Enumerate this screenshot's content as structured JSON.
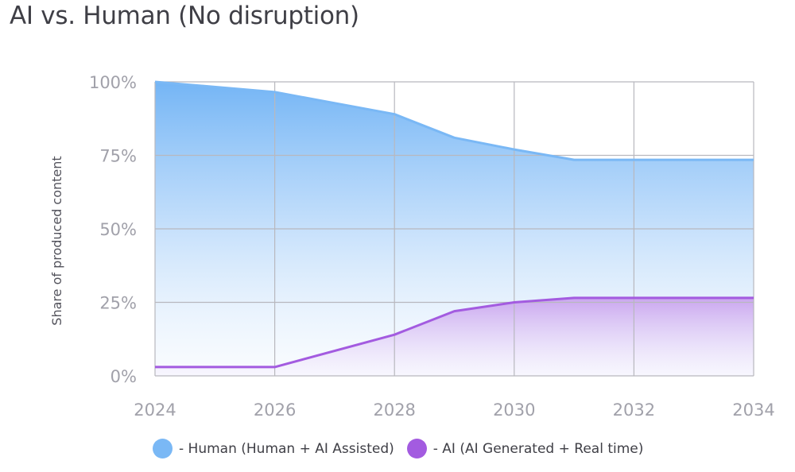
{
  "title": "AI vs. Human (No disruption)",
  "chart_data": {
    "type": "area",
    "title": "AI vs. Human (No disruption)",
    "xlabel": "",
    "ylabel": "Share of produced content",
    "x": [
      2024,
      2026,
      2028,
      2029,
      2030,
      2031,
      2032,
      2034
    ],
    "xticks": [
      "2024",
      "2026",
      "2028",
      "2030",
      "2032",
      "2034"
    ],
    "yticks": [
      "0%",
      "25%",
      "50%",
      "75%",
      "100%"
    ],
    "xlim": [
      2024,
      2034
    ],
    "ylim": [
      0,
      100
    ],
    "grid": true,
    "legend_position": "bottom",
    "series": [
      {
        "name": "Human (Human + AI Assisted)",
        "legend_label": "-  Human (Human + AI Assisted)",
        "color": "#7ab8f5",
        "values": [
          100,
          96.5,
          89,
          81,
          77,
          73.5,
          73.5,
          73.5
        ]
      },
      {
        "name": "AI (AI Generated + Real time)",
        "legend_label": "- AI (AI Generated + Real time)",
        "color": "#a35be0",
        "values": [
          3,
          3,
          14,
          22,
          25,
          26.5,
          26.5,
          26.5
        ]
      }
    ]
  }
}
